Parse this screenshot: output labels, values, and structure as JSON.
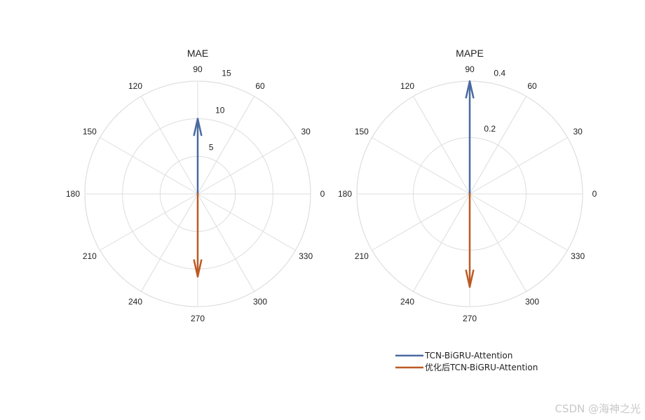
{
  "chart_data": [
    {
      "type": "polar",
      "title": "MAE",
      "theta_ticks": [
        "0",
        "30",
        "60",
        "90",
        "120",
        "150",
        "180",
        "210",
        "240",
        "270",
        "300",
        "330"
      ],
      "r_ticks": [
        "5",
        "10",
        "15"
      ],
      "rlim": [
        0,
        15
      ],
      "grid": true,
      "series": [
        {
          "name": "TCN-BiGRU-Attention",
          "angle_deg": 90,
          "magnitude": 10,
          "color": "#4a6aa0"
        },
        {
          "name": "优化后TCN-BiGRU-Attention",
          "angle_deg": 270,
          "magnitude": 11,
          "color": "#bc5a24"
        }
      ]
    },
    {
      "type": "polar",
      "title": "MAPE",
      "theta_ticks": [
        "0",
        "30",
        "60",
        "90",
        "120",
        "150",
        "180",
        "210",
        "240",
        "270",
        "300",
        "330"
      ],
      "r_ticks": [
        "0.2",
        "0.4"
      ],
      "rlim": [
        0,
        0.4
      ],
      "grid": true,
      "series": [
        {
          "name": "TCN-BiGRU-Attention",
          "angle_deg": 90,
          "magnitude": 0.4,
          "color": "#4a6aa0"
        },
        {
          "name": "优化后TCN-BiGRU-Attention",
          "angle_deg": 270,
          "magnitude": 0.33,
          "color": "#bc5a24"
        }
      ]
    }
  ],
  "legend": {
    "placement": "bottom-right",
    "entries": [
      {
        "label": "TCN-BiGRU-Attention",
        "color": "#4a6aa0"
      },
      {
        "label": "优化后TCN-BiGRU-Attention",
        "color": "#bc5a24"
      }
    ]
  },
  "watermark": "CSDN @海神之光"
}
